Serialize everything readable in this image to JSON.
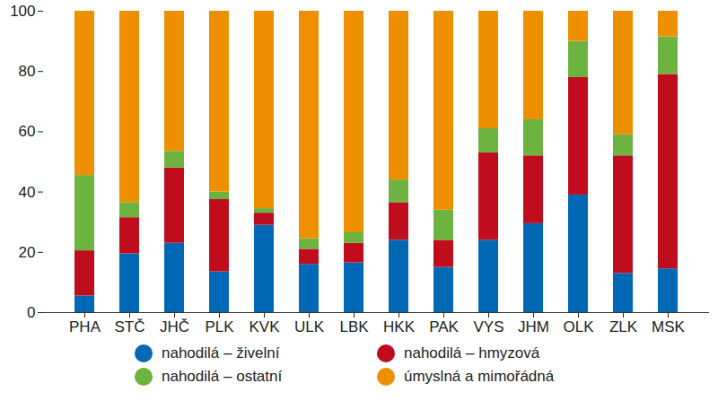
{
  "chart_data": {
    "type": "bar",
    "stacked": true,
    "legend": "bottom",
    "grid": false,
    "categories": [
      "PHA",
      "STČ",
      "JHČ",
      "PLK",
      "KVK",
      "ULK",
      "LBK",
      "HKK",
      "PAK",
      "VYS",
      "JHM",
      "OLK",
      "ZLK",
      "MSK"
    ],
    "series": [
      {
        "name": "nahodilá – živelní",
        "color": "#0068b4",
        "values": [
          5.5,
          19.5,
          23,
          13.5,
          29,
          16,
          16.5,
          24,
          15,
          24,
          29.5,
          39,
          13,
          14.5
        ]
      },
      {
        "name": "nahodilá – hmyzová",
        "color": "#c00d1e",
        "values": [
          15,
          12,
          25,
          24,
          4,
          5,
          6.5,
          12.5,
          9,
          29,
          22.5,
          39,
          39,
          64.5
        ]
      },
      {
        "name": "nahodilá – ostatní",
        "color": "#6cb33f",
        "values": [
          25,
          5,
          5.5,
          2.5,
          1.5,
          3.5,
          3.5,
          7.5,
          10,
          8,
          12,
          12,
          7,
          12.5
        ]
      },
      {
        "name": "úmyslná a mimořádná",
        "color": "#ee8f00",
        "values": [
          54.5,
          63.5,
          46.5,
          60,
          65.5,
          75.5,
          73.5,
          56,
          66,
          39,
          36,
          10,
          41,
          8.5
        ]
      }
    ],
    "ylim": [
      0,
      100
    ],
    "yticks": [
      0,
      20,
      40,
      60,
      80,
      100
    ]
  }
}
